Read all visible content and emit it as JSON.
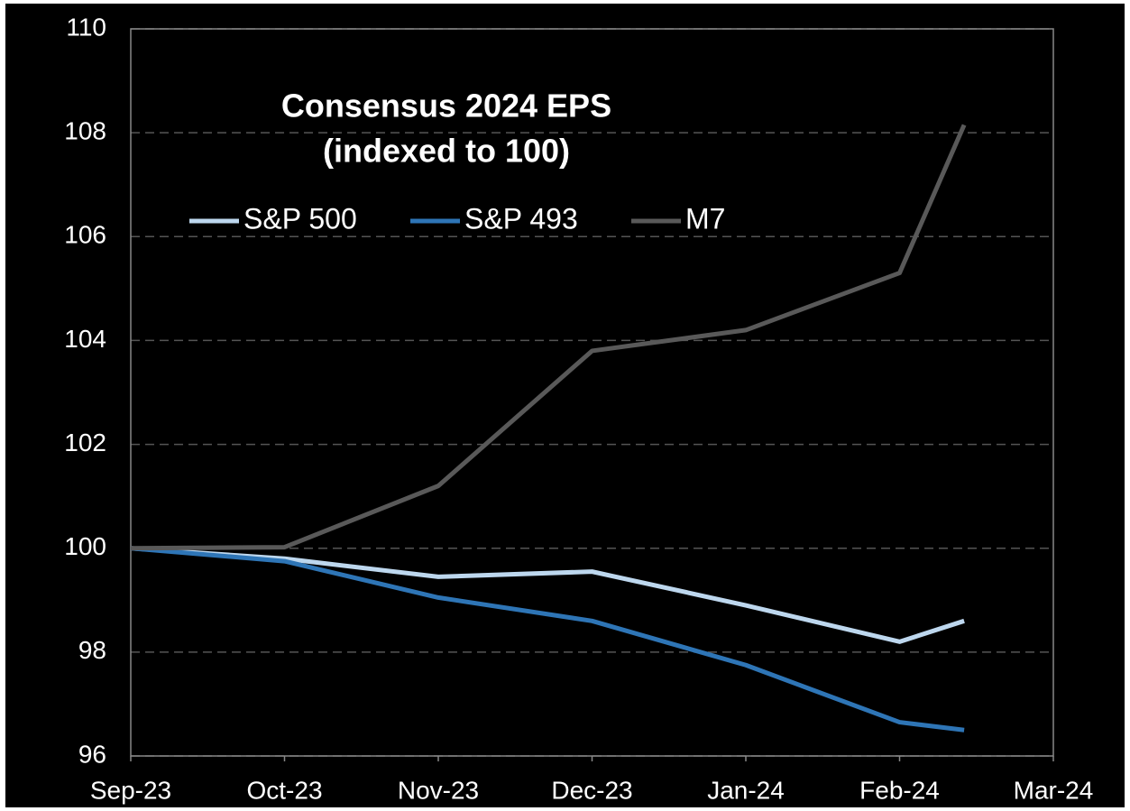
{
  "chart_data": {
    "type": "line",
    "title": "Consensus 2024 EPS",
    "subtitle": "(indexed to 100)",
    "x": [
      0,
      1,
      2,
      3,
      4,
      5,
      5.42
    ],
    "series": [
      {
        "name": "S&P 500",
        "color": "#bdd7ee",
        "values": [
          100,
          99.8,
          99.45,
          99.55,
          98.9,
          98.2,
          98.6
        ]
      },
      {
        "name": "S&P 493",
        "color": "#2e75b6",
        "values": [
          100,
          99.75,
          99.05,
          98.6,
          97.75,
          96.65,
          96.5
        ]
      },
      {
        "name": "M7",
        "color": "#595959",
        "values": [
          100,
          100.02,
          101.2,
          103.8,
          104.2,
          105.3,
          108.15
        ]
      }
    ],
    "xlim": [
      0,
      6
    ],
    "xticks": [
      {
        "value": 0,
        "label": "Sep-23"
      },
      {
        "value": 1,
        "label": "Oct-23"
      },
      {
        "value": 2,
        "label": "Nov-23"
      },
      {
        "value": 3,
        "label": "Dec-23"
      },
      {
        "value": 4,
        "label": "Jan-24"
      },
      {
        "value": 5,
        "label": "Feb-24"
      },
      {
        "value": 6,
        "label": "Mar-24"
      }
    ],
    "ylim": [
      96,
      110
    ],
    "yticks": [
      96,
      98,
      100,
      102,
      104,
      106,
      108,
      110
    ],
    "grid": true,
    "legend": "top"
  }
}
